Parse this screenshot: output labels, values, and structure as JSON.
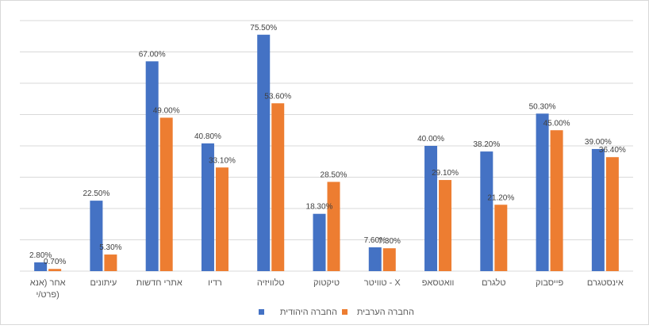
{
  "chart_data": {
    "type": "bar",
    "categories": [
      "אינסטגרם",
      "פייסבוק",
      "טלגרם",
      "וואטסאפ",
      "טוויטר - X",
      "טיקטוק",
      "טלוויזיה",
      "רדיו",
      "אתרי חדשות",
      "עיתונים",
      "אחר (אנא פרט/י)"
    ],
    "category_lines": [
      [
        "אינסטגרם"
      ],
      [
        "פייסבוק"
      ],
      [
        "טלגרם"
      ],
      [
        "וואטסאפ"
      ],
      [
        "טוויטר - X"
      ],
      [
        "טיקטוק"
      ],
      [
        "טלוויזיה"
      ],
      [
        "רדיו"
      ],
      [
        "אתרי חדשות"
      ],
      [
        "עיתונים"
      ],
      [
        "אחר (אנא",
        "פרט/י)"
      ]
    ],
    "series": [
      {
        "name": "החברה היהודית",
        "color": "#4472C4",
        "values": [
          39.0,
          50.3,
          38.2,
          40.0,
          7.6,
          18.3,
          75.5,
          40.8,
          67.0,
          22.5,
          2.8
        ],
        "labels": [
          "39.00%",
          "50.30%",
          "38.20%",
          "40.00%",
          "7.60%",
          "18.30%",
          "75.50%",
          "40.80%",
          "67.00%",
          "22.50%",
          "2.80%"
        ]
      },
      {
        "name": "החברה הערבית",
        "color": "#ED7D31",
        "values": [
          36.4,
          45.0,
          21.2,
          29.1,
          7.3,
          28.5,
          53.6,
          33.1,
          49.0,
          5.3,
          0.7
        ],
        "labels": [
          "36.40%",
          "45.00%",
          "21.20%",
          "29.10%",
          "7.30%",
          "28.50%",
          "53.60%",
          "33.10%",
          "49.00%",
          "5.30%",
          "0.70%"
        ]
      }
    ],
    "ylim": [
      0,
      80
    ],
    "grid": true,
    "legend_position": "bottom",
    "gridline_color": "#D9D9D9"
  }
}
